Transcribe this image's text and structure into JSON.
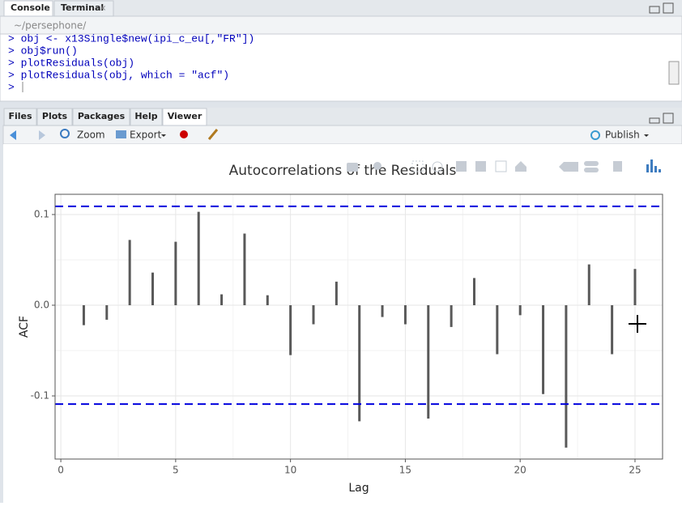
{
  "top_tabs": [
    "Console",
    "Terminal"
  ],
  "console": {
    "path": "~/persephone/",
    "lines": [
      "> obj <- x13Single$new(ipi_c_eu[,\"FR\"])",
      "> obj$run()",
      "> plotResiduals(obj)",
      "> plotResiduals(obj, which = \"acf\")",
      "> "
    ]
  },
  "bottom_tabs": [
    "Files",
    "Plots",
    "Packages",
    "Help",
    "Viewer"
  ],
  "toolbar": {
    "zoom": "Zoom",
    "export": "Export",
    "publish": "Publish"
  },
  "chart_data": {
    "type": "bar",
    "title": "Autocorrelations of the Residuals",
    "x_label": "Lag",
    "y_label": "ACF",
    "x": [
      1,
      2,
      3,
      4,
      5,
      6,
      7,
      8,
      9,
      10,
      11,
      12,
      13,
      14,
      15,
      16,
      17,
      18,
      19,
      20,
      21,
      22,
      23,
      24,
      25
    ],
    "values": [
      -0.022,
      -0.016,
      0.072,
      0.036,
      0.07,
      0.103,
      0.012,
      0.079,
      0.011,
      -0.055,
      -0.021,
      0.026,
      -0.128,
      -0.013,
      -0.021,
      -0.125,
      -0.024,
      0.03,
      -0.054,
      -0.011,
      -0.098,
      -0.157,
      0.045,
      -0.054,
      0.04
    ],
    "color": "#595959",
    "hlines": [
      0.109,
      -0.109
    ],
    "hline_color": "#0000dd",
    "xlim": [
      -0.25,
      26.2
    ],
    "ylim": [
      -0.1696,
      0.1223
    ],
    "xticks": [
      0,
      5,
      10,
      15,
      20,
      25
    ],
    "yticks": [
      -0.1,
      {
        "value": 0,
        "label": "0.0"
      },
      0.1
    ],
    "grid": true
  }
}
